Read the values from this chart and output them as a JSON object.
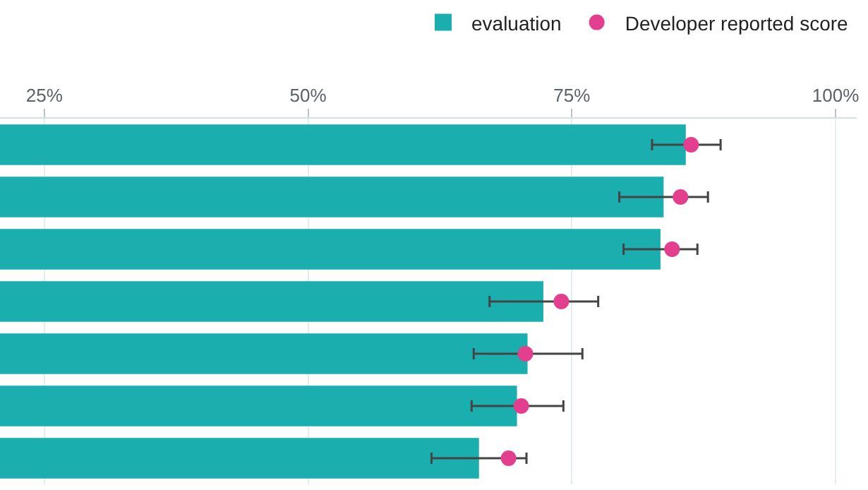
{
  "chart_data": {
    "type": "bar",
    "orientation": "horizontal",
    "categories": [
      null,
      null,
      null,
      null,
      null,
      null,
      null
    ],
    "series": [
      {
        "name": "evaluation",
        "color": "#1aaeae",
        "values": [
          85.8,
          83.7,
          83.4,
          72.3,
          70.8,
          69.8,
          66.2
        ]
      },
      {
        "name": "Developer reported score",
        "type": "scatter",
        "color": "#e43f8f",
        "values": [
          86.3,
          85.3,
          84.5,
          74.0,
          70.6,
          70.2,
          69.0
        ],
        "errors": [
          [
            82.6,
            89.1
          ],
          [
            79.5,
            87.9
          ],
          [
            79.9,
            86.9
          ],
          [
            67.2,
            77.5
          ],
          [
            65.7,
            76.0
          ],
          [
            65.5,
            74.2
          ],
          [
            61.7,
            70.7
          ]
        ]
      }
    ],
    "xlim": [
      20.8,
      102.0
    ],
    "xticks": [
      {
        "value": 25,
        "label": "25%"
      },
      {
        "value": 50,
        "label": "50%"
      },
      {
        "value": 75,
        "label": "75%"
      },
      {
        "value": 100,
        "label": "100%"
      }
    ],
    "grid": "x",
    "legend": "top right",
    "marker": "circle",
    "tick_labels": "x"
  }
}
